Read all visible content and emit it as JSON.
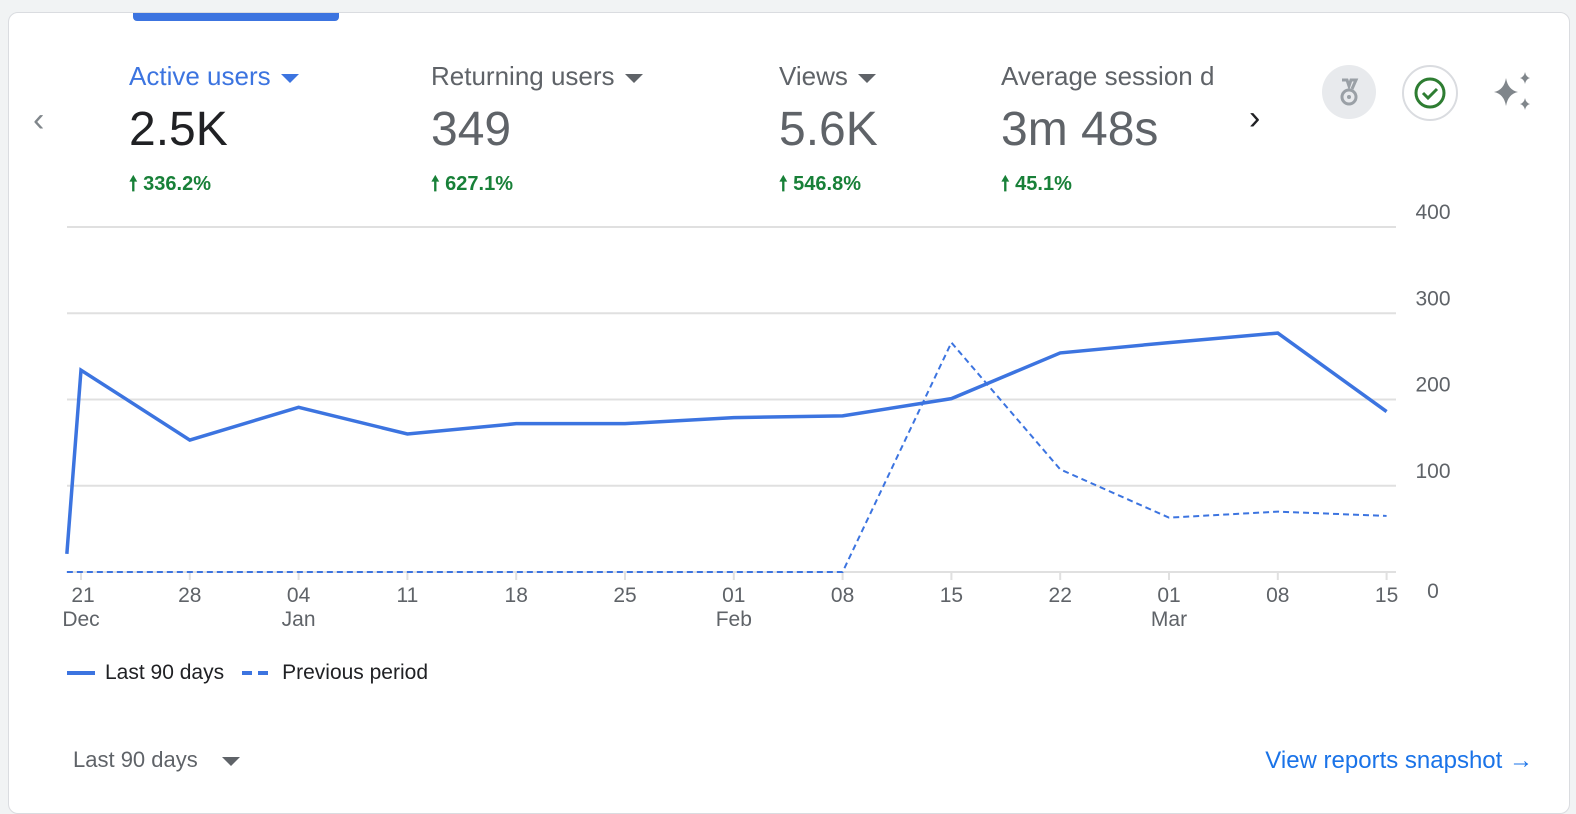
{
  "metrics": [
    {
      "label": "Active users",
      "value": "2.5K",
      "change": "336.2%"
    },
    {
      "label": "Returning users",
      "value": "349",
      "change": "627.1%"
    },
    {
      "label": "Views",
      "value": "5.6K",
      "change": "546.8%"
    },
    {
      "label": "Average session d",
      "value": "3m 48s",
      "change": "45.1%"
    }
  ],
  "colors": {
    "accent": "#3c74e0",
    "positive": "#188038"
  },
  "footer": {
    "range": "Last 90 days",
    "link": "View reports snapshot"
  },
  "chart_data": {
    "type": "line",
    "x_ticks": [
      "21",
      "28",
      "04",
      "11",
      "18",
      "25",
      "01",
      "08",
      "15",
      "22",
      "01",
      "08",
      "15"
    ],
    "x_month_labels": [
      {
        "tick": 0,
        "label": "Dec"
      },
      {
        "tick": 2,
        "label": "Jan"
      },
      {
        "tick": 6,
        "label": "Feb"
      },
      {
        "tick": 10,
        "label": "Mar"
      }
    ],
    "x_week_index": [
      -0.13,
      0,
      1,
      2,
      3,
      4,
      5,
      6,
      7,
      8,
      9,
      10,
      11,
      12
    ],
    "ylim": [
      0,
      400
    ],
    "y_ticks": [
      0,
      100,
      200,
      300,
      400
    ],
    "grid": true,
    "legend_placement": "bottom-left",
    "series": [
      {
        "name": "Last 90 days",
        "style": "solid",
        "values": [
          21,
          234,
          153,
          191,
          160,
          172,
          172,
          179,
          181,
          201,
          254,
          266,
          277,
          186
        ]
      },
      {
        "name": "Previous period",
        "style": "dashed",
        "values": [
          0,
          0,
          0,
          0,
          0,
          0,
          0,
          0,
          0,
          266,
          119,
          63,
          70,
          65
        ]
      }
    ]
  }
}
